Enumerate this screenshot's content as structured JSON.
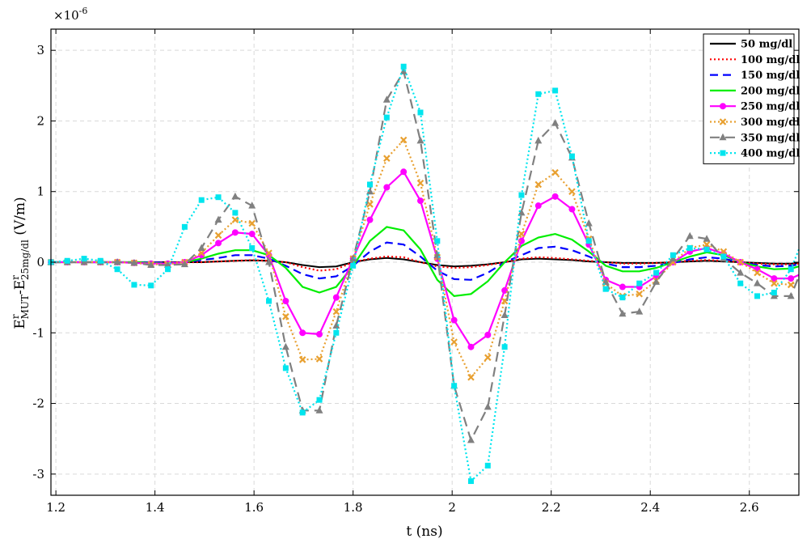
{
  "chart_data": {
    "type": "line",
    "xlabel": "t (ns)",
    "ylabel": {
      "base1": "E",
      "sup1": "r",
      "sub1": "MUT",
      "mid": "-E",
      "sup2": "r",
      "sub2": "25mg/dl",
      "units": " (V/m)"
    },
    "y_exponent": {
      "base": "×10",
      "power": "-6"
    },
    "xlim": [
      1.19,
      2.7
    ],
    "ylim": [
      -3.3,
      3.3
    ],
    "x_ticks": [
      1.2,
      1.4,
      1.6,
      1.8,
      2,
      2.2,
      2.4,
      2.6
    ],
    "x_tick_labels": [
      "1.2",
      "1.4",
      "1.6",
      "1.8",
      "2",
      "2.2",
      "2.4",
      "2.6"
    ],
    "y_ticks": [
      -3,
      -2,
      -1,
      0,
      1,
      2,
      3
    ],
    "y_tick_labels": [
      "-3",
      "-2",
      "-1",
      "0",
      "1",
      "2",
      "3"
    ],
    "grid": true,
    "legend_position": "top-right",
    "x": [
      1.19,
      1.223,
      1.257,
      1.29,
      1.324,
      1.358,
      1.392,
      1.426,
      1.46,
      1.494,
      1.528,
      1.562,
      1.596,
      1.63,
      1.664,
      1.698,
      1.732,
      1.766,
      1.8,
      1.834,
      1.868,
      1.902,
      1.936,
      1.97,
      2.004,
      2.038,
      2.072,
      2.106,
      2.14,
      2.174,
      2.208,
      2.242,
      2.276,
      2.31,
      2.344,
      2.378,
      2.412,
      2.446,
      2.48,
      2.514,
      2.548,
      2.582,
      2.616,
      2.65,
      2.684,
      2.7
    ],
    "series": [
      {
        "name": "50 mg/dl",
        "color": "#000000",
        "dash": "",
        "marker": "none",
        "values": [
          0,
          0,
          0,
          0,
          0,
          0,
          0,
          0,
          0,
          0,
          0.01,
          0.02,
          0.025,
          0.02,
          0,
          -0.04,
          -0.07,
          -0.06,
          0,
          0.04,
          0.06,
          0.04,
          0,
          -0.04,
          -0.06,
          -0.05,
          -0.03,
          0,
          0.04,
          0.05,
          0.04,
          0.03,
          0.01,
          0,
          -0.01,
          -0.01,
          -0.01,
          0,
          0.01,
          0.02,
          0.01,
          0,
          -0.01,
          -0.02,
          -0.02,
          -0.01
        ]
      },
      {
        "name": "100 mg/dl",
        "color": "#ff0000",
        "dash": "2,3",
        "marker": "none",
        "values": [
          0,
          0,
          0,
          0,
          0,
          0,
          0,
          0,
          0,
          0,
          0.01,
          0.02,
          0.03,
          0.02,
          0,
          -0.07,
          -0.12,
          -0.1,
          0,
          0.05,
          0.08,
          0.07,
          0,
          -0.06,
          -0.08,
          -0.07,
          -0.04,
          0,
          0.05,
          0.07,
          0.06,
          0.04,
          0.02,
          0,
          -0.02,
          -0.02,
          -0.01,
          0,
          0.02,
          0.03,
          0.02,
          0,
          -0.02,
          -0.03,
          -0.03,
          -0.02
        ]
      },
      {
        "name": "150 mg/dl",
        "color": "#0000ff",
        "dash": "10,6",
        "marker": "none",
        "values": [
          0,
          0,
          0,
          0,
          0,
          0,
          0,
          -0.01,
          0,
          0.03,
          0.06,
          0.1,
          0.1,
          0.05,
          -0.05,
          -0.17,
          -0.23,
          -0.2,
          -0.05,
          0.15,
          0.28,
          0.25,
          0.08,
          -0.12,
          -0.24,
          -0.25,
          -0.15,
          0,
          0.1,
          0.2,
          0.22,
          0.17,
          0.08,
          -0.02,
          -0.07,
          -0.07,
          -0.05,
          -0.01,
          0.04,
          0.07,
          0.05,
          0,
          -0.04,
          -0.06,
          -0.05,
          -0.03
        ]
      },
      {
        "name": "200 mg/dl",
        "color": "#00ee00",
        "dash": "",
        "marker": "none",
        "values": [
          0,
          0,
          0,
          0,
          0,
          0,
          -0.01,
          -0.02,
          0,
          0.05,
          0.12,
          0.17,
          0.17,
          0.1,
          -0.08,
          -0.35,
          -0.43,
          -0.35,
          -0.05,
          0.3,
          0.5,
          0.45,
          0.18,
          -0.25,
          -0.48,
          -0.45,
          -0.27,
          0,
          0.23,
          0.35,
          0.4,
          0.32,
          0.15,
          -0.05,
          -0.13,
          -0.13,
          -0.08,
          0,
          0.08,
          0.14,
          0.1,
          0,
          -0.06,
          -0.1,
          -0.09,
          -0.06
        ]
      },
      {
        "name": "250 mg/dl",
        "color": "#ff00ff",
        "dash": "",
        "marker": "circle",
        "values": [
          0,
          0,
          0,
          0,
          0,
          -0.01,
          -0.02,
          -0.02,
          0,
          0.1,
          0.27,
          0.42,
          0.4,
          0.1,
          -0.55,
          -1.0,
          -1.02,
          -0.5,
          0.05,
          0.6,
          1.06,
          1.28,
          0.87,
          0.05,
          -0.82,
          -1.2,
          -1.03,
          -0.4,
          0.3,
          0.8,
          0.93,
          0.75,
          0.25,
          -0.25,
          -0.35,
          -0.35,
          -0.2,
          0,
          0.15,
          0.2,
          0.12,
          0,
          -0.1,
          -0.23,
          -0.23,
          -0.18
        ]
      },
      {
        "name": "300 mg/dl",
        "color": "#e8a030",
        "dash": "2,3",
        "marker": "x",
        "values": [
          0,
          0,
          0,
          0,
          0,
          -0.01,
          -0.03,
          -0.03,
          0,
          0.13,
          0.38,
          0.6,
          0.55,
          0.13,
          -0.77,
          -1.38,
          -1.37,
          -0.7,
          0.05,
          0.82,
          1.47,
          1.73,
          1.12,
          0.07,
          -1.13,
          -1.63,
          -1.35,
          -0.55,
          0.4,
          1.1,
          1.27,
          1.0,
          0.33,
          -0.3,
          -0.48,
          -0.45,
          -0.26,
          0,
          0.2,
          0.25,
          0.15,
          0,
          -0.15,
          -0.3,
          -0.32,
          -0.25
        ]
      },
      {
        "name": "350 mg/dl",
        "color": "#808080",
        "dash": "12,7",
        "marker": "triangle",
        "values": [
          0,
          0,
          0,
          0,
          0,
          -0.01,
          -0.04,
          -0.04,
          -0.03,
          0.2,
          0.6,
          0.93,
          0.8,
          0,
          -1.2,
          -2.1,
          -2.1,
          -0.9,
          0.05,
          1.0,
          2.3,
          2.7,
          1.72,
          0.1,
          -1.75,
          -2.52,
          -2.05,
          -0.75,
          0.7,
          1.72,
          1.97,
          1.48,
          0.55,
          -0.28,
          -0.73,
          -0.7,
          -0.28,
          0.05,
          0.37,
          0.33,
          0.05,
          -0.15,
          -0.3,
          -0.48,
          -0.48,
          -0.2
        ]
      },
      {
        "name": "400 mg/dl",
        "color": "#00e5ee",
        "dash": "2,3",
        "marker": "square",
        "values": [
          0,
          0.02,
          0.05,
          0.02,
          -0.1,
          -0.32,
          -0.33,
          -0.1,
          0.5,
          0.88,
          0.92,
          0.7,
          0.2,
          -0.55,
          -1.5,
          -2.13,
          -1.95,
          -1.0,
          -0.05,
          1.1,
          2.05,
          2.77,
          2.12,
          0.3,
          -1.75,
          -3.1,
          -2.88,
          -1.2,
          0.95,
          2.38,
          2.43,
          1.5,
          0.3,
          -0.38,
          -0.5,
          -0.3,
          -0.15,
          0.1,
          0.2,
          0.18,
          0.08,
          -0.3,
          -0.48,
          -0.43,
          -0.1,
          0.18
        ]
      }
    ]
  }
}
